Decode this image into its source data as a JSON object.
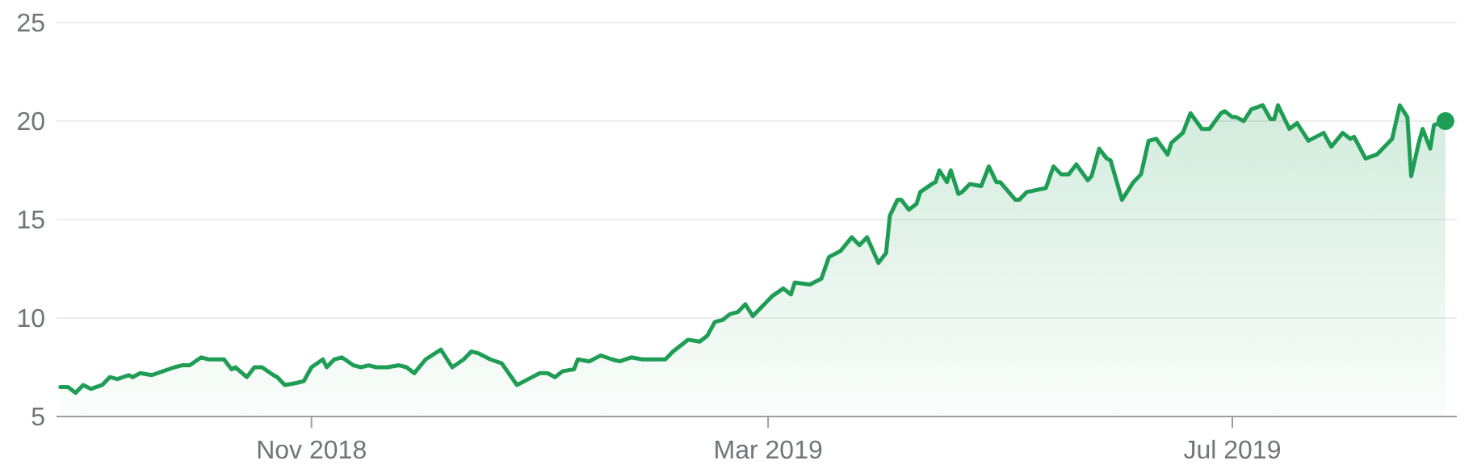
{
  "chart_data": {
    "type": "area",
    "xlim": [
      "2018-08-26",
      "2019-08-29"
    ],
    "xticks": [
      {
        "value": "2018-11-01",
        "label": "Nov 2018"
      },
      {
        "value": "2019-03-01",
        "label": "Mar 2019"
      },
      {
        "value": "2019-07-01",
        "label": "Jul 2019"
      }
    ],
    "ylim": [
      5,
      25
    ],
    "yticks": [
      5,
      10,
      15,
      20,
      25
    ],
    "grid": "y",
    "series": [
      {
        "color": "#1f9d55",
        "x": [
          "2018-08-27",
          "2018-08-29",
          "2018-08-31",
          "2018-09-02",
          "2018-09-04",
          "2018-09-07",
          "2018-09-09",
          "2018-09-11",
          "2018-09-14",
          "2018-09-15",
          "2018-09-17",
          "2018-09-20",
          "2018-09-23",
          "2018-09-26",
          "2018-09-28",
          "2018-09-30",
          "2018-10-03",
          "2018-10-05",
          "2018-10-08",
          "2018-10-09",
          "2018-10-11",
          "2018-10-12",
          "2018-10-15",
          "2018-10-17",
          "2018-10-19",
          "2018-10-22",
          "2018-10-23",
          "2018-10-25",
          "2018-10-28",
          "2018-10-30",
          "2018-11-01",
          "2018-11-04",
          "2018-11-05",
          "2018-11-07",
          "2018-11-09",
          "2018-11-12",
          "2018-11-14",
          "2018-11-16",
          "2018-11-18",
          "2018-11-21",
          "2018-11-24",
          "2018-11-26",
          "2018-11-28",
          "2018-12-01",
          "2018-12-05",
          "2018-12-08",
          "2018-12-11",
          "2018-12-13",
          "2018-12-15",
          "2018-12-18",
          "2018-12-21",
          "2018-12-25",
          "2018-12-28",
          "2018-12-31",
          "2019-01-02",
          "2019-01-04",
          "2019-01-06",
          "2019-01-09",
          "2019-01-10",
          "2019-01-13",
          "2019-01-16",
          "2019-01-19",
          "2019-01-21",
          "2019-01-24",
          "2019-01-27",
          "2019-01-28",
          "2019-01-30",
          "2019-02-02",
          "2019-02-04",
          "2019-02-08",
          "2019-02-11",
          "2019-02-13",
          "2019-02-15",
          "2019-02-17",
          "2019-02-19",
          "2019-02-21",
          "2019-02-23",
          "2019-02-25",
          "2019-03-02",
          "2019-03-05",
          "2019-03-07",
          "2019-03-08",
          "2019-03-12",
          "2019-03-15",
          "2019-03-17",
          "2019-03-20",
          "2019-03-23",
          "2019-03-25",
          "2019-03-27",
          "2019-03-30",
          "2019-04-01",
          "2019-04-02",
          "2019-04-04",
          "2019-04-05",
          "2019-04-07",
          "2019-04-09",
          "2019-04-10",
          "2019-04-13",
          "2019-04-14",
          "2019-04-15",
          "2019-04-17",
          "2019-04-18",
          "2019-04-20",
          "2019-04-21",
          "2019-04-23",
          "2019-04-26",
          "2019-04-28",
          "2019-04-30",
          "2019-05-01",
          "2019-05-05",
          "2019-05-06",
          "2019-05-08",
          "2019-05-13",
          "2019-05-15",
          "2019-05-17",
          "2019-05-19",
          "2019-05-21",
          "2019-05-24",
          "2019-05-25",
          "2019-05-27",
          "2019-05-29",
          "2019-05-30",
          "2019-06-02",
          "2019-06-05",
          "2019-06-07",
          "2019-06-09",
          "2019-06-11",
          "2019-06-14",
          "2019-06-15",
          "2019-06-18",
          "2019-06-20",
          "2019-06-23",
          "2019-06-25",
          "2019-06-28",
          "2019-06-29",
          "2019-07-01",
          "2019-07-02",
          "2019-07-04",
          "2019-07-06",
          "2019-07-09",
          "2019-07-11",
          "2019-07-12",
          "2019-07-13",
          "2019-07-16",
          "2019-07-18",
          "2019-07-19",
          "2019-07-21",
          "2019-07-25",
          "2019-07-27",
          "2019-07-30",
          "2019-08-01",
          "2019-08-02",
          "2019-08-05",
          "2019-08-08",
          "2019-08-12",
          "2019-08-14",
          "2019-08-16",
          "2019-08-17",
          "2019-08-19",
          "2019-08-20",
          "2019-08-22",
          "2019-08-23",
          "2019-08-26"
        ],
        "values": [
          6.5,
          6.5,
          6.2,
          6.6,
          6.4,
          6.6,
          7.0,
          6.9,
          7.1,
          7.0,
          7.2,
          7.1,
          7.3,
          7.5,
          7.6,
          7.6,
          8.0,
          7.9,
          7.9,
          7.9,
          7.4,
          7.5,
          7.0,
          7.5,
          7.5,
          7.1,
          7.0,
          6.6,
          6.7,
          6.8,
          7.5,
          7.9,
          7.5,
          7.9,
          8.0,
          7.6,
          7.5,
          7.6,
          7.5,
          7.5,
          7.6,
          7.5,
          7.2,
          7.9,
          8.4,
          7.5,
          7.9,
          8.3,
          8.2,
          7.9,
          7.7,
          6.6,
          6.9,
          7.2,
          7.2,
          7.0,
          7.3,
          7.4,
          7.9,
          7.8,
          8.1,
          7.9,
          7.8,
          8.0,
          7.9,
          7.9,
          7.9,
          7.9,
          8.3,
          8.9,
          8.8,
          9.1,
          9.8,
          9.9,
          10.2,
          10.3,
          10.7,
          10.1,
          11.1,
          11.5,
          11.2,
          11.8,
          11.7,
          12.0,
          13.1,
          13.4,
          14.1,
          13.7,
          14.1,
          12.8,
          13.3,
          15.2,
          16.0,
          16.0,
          15.5,
          15.8,
          16.4,
          16.8,
          16.9,
          17.5,
          16.9,
          17.5,
          16.3,
          16.4,
          16.8,
          16.7,
          17.7,
          16.9,
          16.9,
          16.0,
          16.0,
          16.4,
          16.6,
          17.7,
          17.3,
          17.3,
          17.8,
          17.0,
          17.2,
          18.6,
          18.1,
          18.0,
          16.0,
          16.9,
          17.3,
          19.0,
          19.1,
          18.3,
          18.9,
          19.4,
          20.4,
          19.6,
          19.6,
          20.4,
          20.5,
          20.2,
          20.2,
          20.0,
          20.6,
          20.8,
          20.1,
          20.1,
          20.8,
          19.6,
          19.9,
          19.6,
          19.0,
          19.4,
          18.7,
          19.4,
          19.1,
          19.2,
          18.1,
          18.3,
          19.1,
          20.8,
          20.2,
          17.2,
          18.9,
          19.6,
          18.6,
          19.8,
          20.0
        ]
      },
      {
        "type": "scatter",
        "color": "#1f9d55",
        "marker": "circle",
        "x": [
          "2019-08-26"
        ],
        "values": [
          20.0
        ]
      }
    ]
  }
}
